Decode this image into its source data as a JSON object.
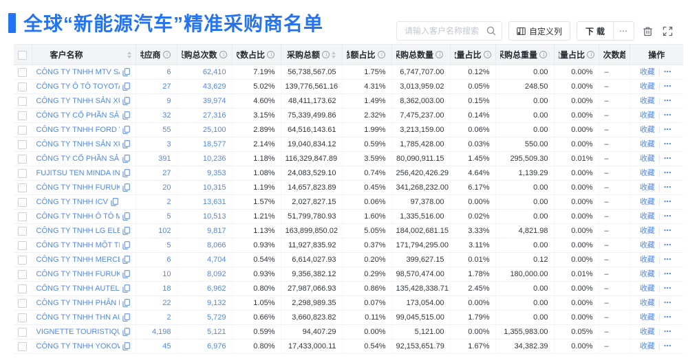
{
  "header": {
    "title": "全球“新能源汽车”精准采购商名单"
  },
  "toolbar": {
    "search_placeholder": "请输入客户名称搜索",
    "customize_columns_label": "自定义列",
    "download_label": "下载",
    "more_label": "⋯"
  },
  "table": {
    "columns": [
      {
        "key": "name",
        "label": "客户名称",
        "sort": true,
        "info": false
      },
      {
        "key": "suppliers",
        "label": "供应商",
        "sort": true,
        "info": true
      },
      {
        "key": "total_purchases",
        "label": "采购总次数",
        "sort": true,
        "info": true
      },
      {
        "key": "count_share",
        "label": "次数占比",
        "sort": true,
        "info": true
      },
      {
        "key": "total_amount",
        "label": "采购总额",
        "sort": true,
        "info": true
      },
      {
        "key": "amount_share",
        "label": "总额占比",
        "sort": true,
        "info": true
      },
      {
        "key": "total_quantity",
        "label": "采购总数量",
        "sort": true,
        "info": true
      },
      {
        "key": "quantity_share",
        "label": "数量占比",
        "sort": true,
        "info": true
      },
      {
        "key": "total_weight",
        "label": "采购总重量",
        "sort": true,
        "info": true
      },
      {
        "key": "weight_share",
        "label": "重量占比",
        "sort": true,
        "info": true
      },
      {
        "key": "count_trend",
        "label": "次数趋势",
        "sort": false,
        "info": false
      },
      {
        "key": "actions",
        "label": "操作",
        "sort": false,
        "info": false
      }
    ],
    "row_actions": {
      "favorite_label": "收藏",
      "more_label": "⋯"
    },
    "rows": [
      [
        "CÔNG TY TNHH MTV SẢN XUẤ...",
        "6",
        "62,410",
        "7.19%",
        "56,738,567.05",
        "1.75%",
        "6,747,707.00",
        "0.12%",
        "0.00",
        "0.00%",
        "–"
      ],
      [
        "CÔNG TY Ô TÔ TOYOTA VIỆT ...",
        "27",
        "43,629",
        "5.02%",
        "139,776,561.16",
        "4.31%",
        "3,013,959.02",
        "0.05%",
        "248.50",
        "0.00%",
        "–"
      ],
      [
        "CÔNG TY TNHH SẢN XUẤT VÀ ...",
        "9",
        "39,974",
        "4.60%",
        "48,411,173.62",
        "1.49%",
        "8,362,003.00",
        "0.15%",
        "0.00",
        "0.00%",
        "–"
      ],
      [
        "CÔNG TY CỔ PHẦN SẢN XUẤT...",
        "32",
        "27,316",
        "3.15%",
        "75,339,499.86",
        "2.32%",
        "7,475,237.00",
        "0.14%",
        "0.00",
        "0.00%",
        "–"
      ],
      [
        "CÔNG TY TNHH FORD VIỆT NAM",
        "55",
        "25,100",
        "2.89%",
        "64,516,143.61",
        "1.99%",
        "3,213,159.00",
        "0.06%",
        "0.00",
        "0.00%",
        "–"
      ],
      [
        "CÔNG TY TNHH SẢN XUẤT VÀ ...",
        "3",
        "18,577",
        "2.14%",
        "19,040,834.12",
        "0.59%",
        "1,785,428.00",
        "0.03%",
        "550.00",
        "0.00%",
        "–"
      ],
      [
        "CÔNG TY CỔ PHẦN SẢN XUẤT...",
        "391",
        "10,236",
        "1.18%",
        "116,329,847.89",
        "3.59%",
        "80,090,911.15",
        "1.45%",
        "295,509.30",
        "0.01%",
        "–"
      ],
      [
        "FUJITSU TEN MINDA INDIA PVT...",
        "27",
        "9,353",
        "1.08%",
        "24,083,529.10",
        "0.74%",
        "256,420,426.29",
        "4.64%",
        "1,139.29",
        "0.00%",
        "–"
      ],
      [
        "CÔNG TY TNHH FURUKAWA A...",
        "20",
        "10,315",
        "1.19%",
        "14,657,823.89",
        "0.45%",
        "341,268,232.00",
        "6.17%",
        "0.00",
        "0.00%",
        "–"
      ],
      [
        "CÔNG TY TNHH ICV",
        "2",
        "13,631",
        "1.57%",
        "2,027,827.15",
        "0.06%",
        "97,378.00",
        "0.00%",
        "0.00",
        "0.00%",
        "–"
      ],
      [
        "CÔNG TY TNHH Ô TÔ MITSUBI...",
        "5",
        "10,513",
        "1.21%",
        "51,799,780.93",
        "1.60%",
        "1,335,516.00",
        "0.02%",
        "0.00",
        "0.00%",
        "–"
      ],
      [
        "CÔNG TY TNHH LG ELECTRON...",
        "102",
        "9,817",
        "1.13%",
        "163,899,850.02",
        "5.05%",
        "184,002,681.15",
        "3.33%",
        "4,821.98",
        "0.00%",
        "–"
      ],
      [
        "CÔNG TY TNHH MỘT THÀNH V...",
        "5",
        "8,066",
        "0.93%",
        "11,927,835.92",
        "0.37%",
        "171,794,295.00",
        "3.11%",
        "0.00",
        "0.00%",
        "–"
      ],
      [
        "CÔNG TY TNHH MERCEDES–B...",
        "6",
        "4,704",
        "0.54%",
        "6,614,027.93",
        "0.20%",
        "399,627.15",
        "0.01%",
        "0.12",
        "0.00%",
        "–"
      ],
      [
        "CÔNG TY TNHH FURUKAWA A...",
        "10",
        "8,092",
        "0.93%",
        "9,356,382.12",
        "0.29%",
        "98,570,474.00",
        "1.78%",
        "180,000.00",
        "0.01%",
        "–"
      ],
      [
        "CÔNG TY TNHH AUTEL VIỆT N...",
        "18",
        "6,962",
        "0.80%",
        "27,987,066.93",
        "0.86%",
        "135,428,338.71",
        "2.45%",
        "0.00",
        "0.00%",
        "–"
      ],
      [
        "CÔNG TY TNHH PHÂN PHỐI T...",
        "22",
        "9,132",
        "1.05%",
        "2,298,989.35",
        "0.07%",
        "173,054.00",
        "0.00%",
        "0.00",
        "0.00%",
        "–"
      ],
      [
        "CÔNG TY TNHH THN AUTOPAR...",
        "2",
        "5,729",
        "0.66%",
        "3,660,823.82",
        "0.11%",
        "99,045,515.00",
        "1.79%",
        "0.00",
        "0.00%",
        "–"
      ],
      [
        "VIGNETTE TOURISTIQUE G UNI...",
        "4,198",
        "5,121",
        "0.59%",
        "94,407.29",
        "0.00%",
        "5,121.00",
        "0.00%",
        "1,355,983.00",
        "0.05%",
        "–"
      ],
      [
        "CÔNG TY TNHH YOKOWO VIỆT...",
        "45",
        "6,976",
        "0.80%",
        "17,433,000.11",
        "0.54%",
        "92,153,651.79",
        "1.67%",
        "34,382.39",
        "0.00%",
        "–"
      ]
    ]
  }
}
